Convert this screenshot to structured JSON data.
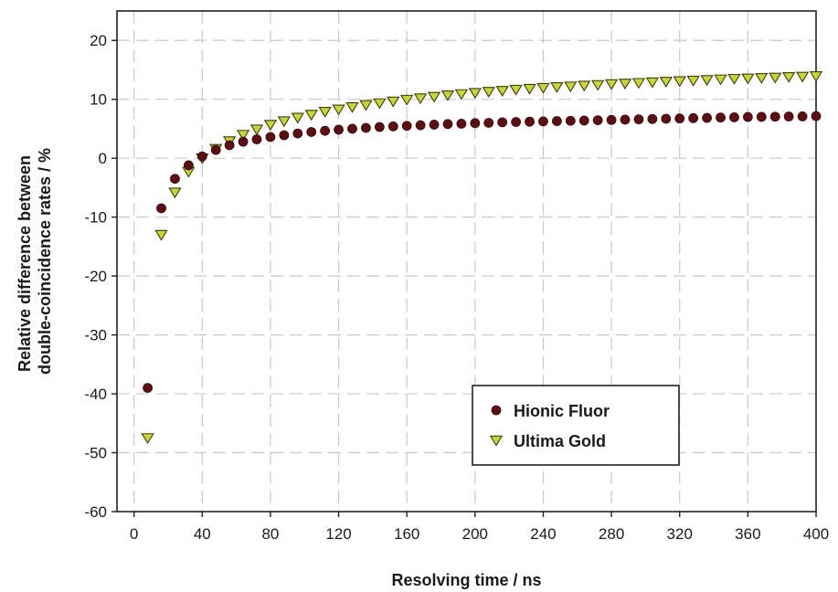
{
  "chart_data": {
    "type": "scatter",
    "title": "",
    "xlabel": "Resolving time / ns",
    "ylabel_lines": [
      "Relative difference between",
      "double-coincidence rates / %"
    ],
    "xlim": [
      -10,
      400
    ],
    "ylim": [
      -60,
      25
    ],
    "xticks": [
      0,
      40,
      80,
      120,
      160,
      200,
      240,
      280,
      320,
      360,
      400
    ],
    "yticks": [
      -60,
      -50,
      -40,
      -30,
      -20,
      -10,
      0,
      10,
      20
    ],
    "xtick_labels": [
      "0",
      "40",
      "80",
      "120",
      "160",
      "200",
      "240",
      "280",
      "320",
      "360",
      "400"
    ],
    "ytick_labels": [
      "-60",
      "-50",
      "-40",
      "-30",
      "-20",
      "-10",
      "0",
      "10",
      "20"
    ],
    "grid": true,
    "legend_position": "lower-right",
    "series": [
      {
        "name": "Hionic Fluor",
        "marker": "circle",
        "color": "#5a0f14",
        "x": [
          8,
          16,
          24,
          32,
          40,
          48,
          56,
          64,
          72,
          80,
          88,
          96,
          104,
          112,
          120,
          128,
          136,
          144,
          152,
          160,
          168,
          176,
          184,
          192,
          200,
          208,
          216,
          224,
          232,
          240,
          248,
          256,
          264,
          272,
          280,
          288,
          296,
          304,
          312,
          320,
          328,
          336,
          344,
          352,
          360,
          368,
          376,
          384,
          392,
          400
        ],
        "y": [
          -39.0,
          -8.5,
          -3.5,
          -1.2,
          0.3,
          1.4,
          2.2,
          2.8,
          3.2,
          3.6,
          3.9,
          4.2,
          4.45,
          4.65,
          4.85,
          5.0,
          5.15,
          5.3,
          5.4,
          5.5,
          5.6,
          5.7,
          5.8,
          5.85,
          5.95,
          6.0,
          6.1,
          6.15,
          6.2,
          6.25,
          6.3,
          6.35,
          6.4,
          6.45,
          6.5,
          6.55,
          6.6,
          6.65,
          6.7,
          6.75,
          6.8,
          6.85,
          6.9,
          6.95,
          7.0,
          7.02,
          7.05,
          7.08,
          7.1,
          7.15
        ]
      },
      {
        "name": "Ultima Gold",
        "marker": "triangle-down",
        "color": "#c8d43a",
        "x": [
          8,
          16,
          24,
          32,
          40,
          48,
          56,
          64,
          72,
          80,
          88,
          96,
          104,
          112,
          120,
          128,
          136,
          144,
          152,
          160,
          168,
          176,
          184,
          192,
          200,
          208,
          216,
          224,
          232,
          240,
          248,
          256,
          264,
          272,
          280,
          288,
          296,
          304,
          312,
          320,
          328,
          336,
          344,
          352,
          360,
          368,
          376,
          384,
          392,
          400
        ],
        "y": [
          -47.5,
          -13.0,
          -5.8,
          -2.3,
          0.0,
          1.6,
          2.9,
          4.0,
          4.9,
          5.7,
          6.3,
          6.9,
          7.4,
          7.9,
          8.3,
          8.7,
          9.05,
          9.35,
          9.65,
          9.95,
          10.2,
          10.45,
          10.7,
          10.9,
          11.1,
          11.3,
          11.45,
          11.65,
          11.8,
          11.95,
          12.1,
          12.2,
          12.35,
          12.45,
          12.6,
          12.7,
          12.8,
          12.9,
          13.0,
          13.1,
          13.2,
          13.3,
          13.4,
          13.5,
          13.55,
          13.65,
          13.7,
          13.8,
          13.85,
          13.95
        ]
      }
    ]
  }
}
